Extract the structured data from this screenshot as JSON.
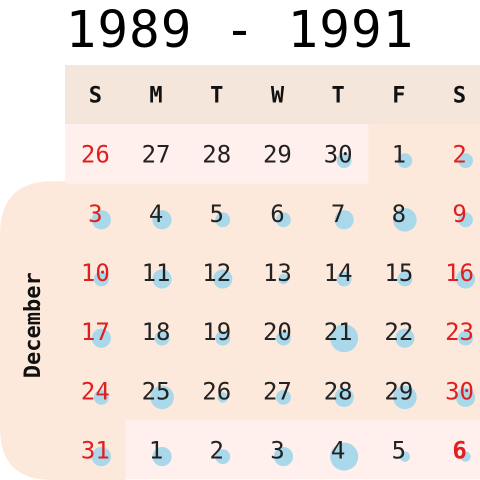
{
  "title": "1989 - 1991",
  "weekday_headers": [
    "S",
    "M",
    "T",
    "W",
    "T",
    "F",
    "S"
  ],
  "month_label": "December",
  "colors": {
    "header_bg": "#f5e6dc",
    "outside_month_bg": "#fff0ee",
    "month_bg": "#fde9db",
    "weekend_text": "#e02020",
    "weekday_text": "#222222",
    "bubble": "#a8d8ea"
  },
  "chart_data": {
    "type": "calendar_bubble",
    "title": "1989 - 1991",
    "month_label": "December",
    "weekdays": [
      "S",
      "M",
      "T",
      "W",
      "T",
      "F",
      "S"
    ],
    "weeks": [
      [
        {
          "day": "26",
          "in_month": false,
          "value": 0
        },
        {
          "day": "27",
          "in_month": false,
          "value": 0
        },
        {
          "day": "28",
          "in_month": false,
          "value": 0
        },
        {
          "day": "29",
          "in_month": false,
          "value": 0
        },
        {
          "day": "30",
          "in_month": false,
          "value": 2
        },
        {
          "day": "1",
          "in_month": true,
          "value": 2
        },
        {
          "day": "2",
          "in_month": true,
          "value": 2
        }
      ],
      [
        {
          "day": "3",
          "in_month": true,
          "value": 3
        },
        {
          "day": "4",
          "in_month": true,
          "value": 3
        },
        {
          "day": "5",
          "in_month": true,
          "value": 2
        },
        {
          "day": "6",
          "in_month": true,
          "value": 2
        },
        {
          "day": "7",
          "in_month": true,
          "value": 3
        },
        {
          "day": "8",
          "in_month": true,
          "value": 4
        },
        {
          "day": "9",
          "in_month": true,
          "value": 2
        }
      ],
      [
        {
          "day": "10",
          "in_month": true,
          "value": 2
        },
        {
          "day": "11",
          "in_month": true,
          "value": 3
        },
        {
          "day": "12",
          "in_month": true,
          "value": 3
        },
        {
          "day": "13",
          "in_month": true,
          "value": 1
        },
        {
          "day": "14",
          "in_month": true,
          "value": 2
        },
        {
          "day": "15",
          "in_month": true,
          "value": 2
        },
        {
          "day": "16",
          "in_month": true,
          "value": 3
        }
      ],
      [
        {
          "day": "17",
          "in_month": true,
          "value": 3
        },
        {
          "day": "18",
          "in_month": true,
          "value": 2
        },
        {
          "day": "19",
          "in_month": true,
          "value": 2
        },
        {
          "day": "20",
          "in_month": true,
          "value": 2
        },
        {
          "day": "21",
          "in_month": true,
          "value": 5
        },
        {
          "day": "22",
          "in_month": true,
          "value": 3
        },
        {
          "day": "23",
          "in_month": true,
          "value": 2
        }
      ],
      [
        {
          "day": "24",
          "in_month": true,
          "value": 2
        },
        {
          "day": "25",
          "in_month": true,
          "value": 4
        },
        {
          "day": "26",
          "in_month": true,
          "value": 1
        },
        {
          "day": "27",
          "in_month": true,
          "value": 2
        },
        {
          "day": "28",
          "in_month": true,
          "value": 3
        },
        {
          "day": "29",
          "in_month": true,
          "value": 4
        },
        {
          "day": "30",
          "in_month": true,
          "value": 3
        }
      ],
      [
        {
          "day": "31",
          "in_month": true,
          "value": 3
        },
        {
          "day": "1",
          "in_month": false,
          "value": 3
        },
        {
          "day": "2",
          "in_month": false,
          "value": 2
        },
        {
          "day": "3",
          "in_month": false,
          "value": 3
        },
        {
          "day": "4",
          "in_month": false,
          "value": 5
        },
        {
          "day": "5",
          "in_month": false,
          "value": 1
        },
        {
          "day": "6",
          "in_month": false,
          "value": 1,
          "bold": true
        }
      ]
    ]
  }
}
